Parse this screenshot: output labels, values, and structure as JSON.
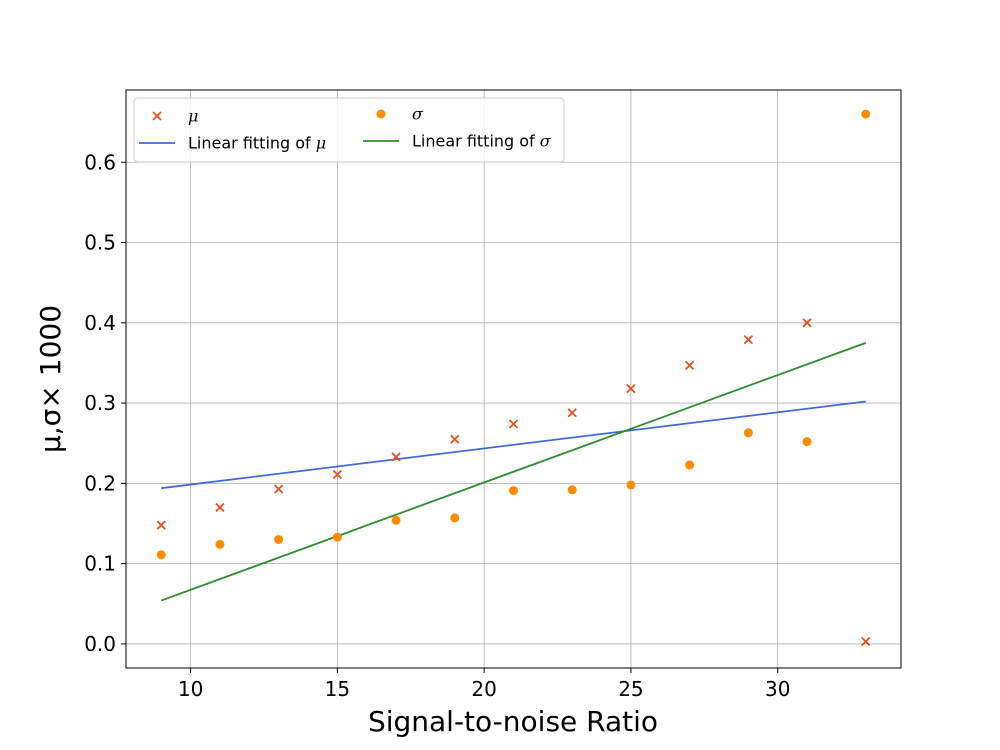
{
  "chart_data": {
    "type": "scatter",
    "xlabel": "Signal-to-noise Ratio",
    "ylabel": "μ,σ× 1000",
    "xlim": [
      7.8,
      34.2
    ],
    "ylim": [
      -0.03,
      0.69
    ],
    "xticks": [
      10,
      15,
      20,
      25,
      30
    ],
    "yticks": [
      0.0,
      0.1,
      0.2,
      0.3,
      0.4,
      0.5,
      0.6
    ],
    "xtick_labels": [
      "10",
      "15",
      "20",
      "25",
      "30"
    ],
    "ytick_labels": [
      "0.0",
      "0.1",
      "0.2",
      "0.3",
      "0.4",
      "0.5",
      "0.6"
    ],
    "grid": true,
    "legend_position": "top-left",
    "legend_columns": 2,
    "series": [
      {
        "name": "μ",
        "kind": "scatter",
        "marker": "x",
        "color": "#e8501c",
        "x": [
          9,
          11,
          13,
          15,
          17,
          19,
          21,
          23,
          25,
          27,
          29,
          31,
          33
        ],
        "y": [
          0.148,
          0.17,
          0.193,
          0.211,
          0.233,
          0.255,
          0.274,
          0.288,
          0.318,
          0.347,
          0.379,
          0.4,
          0.003
        ]
      },
      {
        "name": "Linear fitting of μ",
        "kind": "line",
        "color": "#4169d8",
        "x": [
          9,
          33
        ],
        "y": [
          0.194,
          0.302
        ]
      },
      {
        "name": "σ",
        "kind": "scatter",
        "marker": "o",
        "color": "#ff8c00",
        "x": [
          9,
          11,
          13,
          15,
          17,
          19,
          21,
          23,
          25,
          27,
          29,
          31,
          33
        ],
        "y": [
          0.111,
          0.124,
          0.13,
          0.133,
          0.154,
          0.157,
          0.191,
          0.192,
          0.198,
          0.223,
          0.263,
          0.252,
          0.66
        ]
      },
      {
        "name": "Linear fitting of σ",
        "kind": "line",
        "color": "#2e8b2e",
        "x": [
          9,
          33
        ],
        "y": [
          0.054,
          0.375
        ]
      }
    ],
    "legend": [
      {
        "series": 0,
        "prefix": "",
        "italic": "μ"
      },
      {
        "series": 2,
        "prefix": "",
        "italic": "σ"
      },
      {
        "series": 1,
        "prefix": "Linear fitting of ",
        "italic": "μ"
      },
      {
        "series": 3,
        "prefix": "Linear fitting of ",
        "italic": "σ"
      }
    ]
  }
}
